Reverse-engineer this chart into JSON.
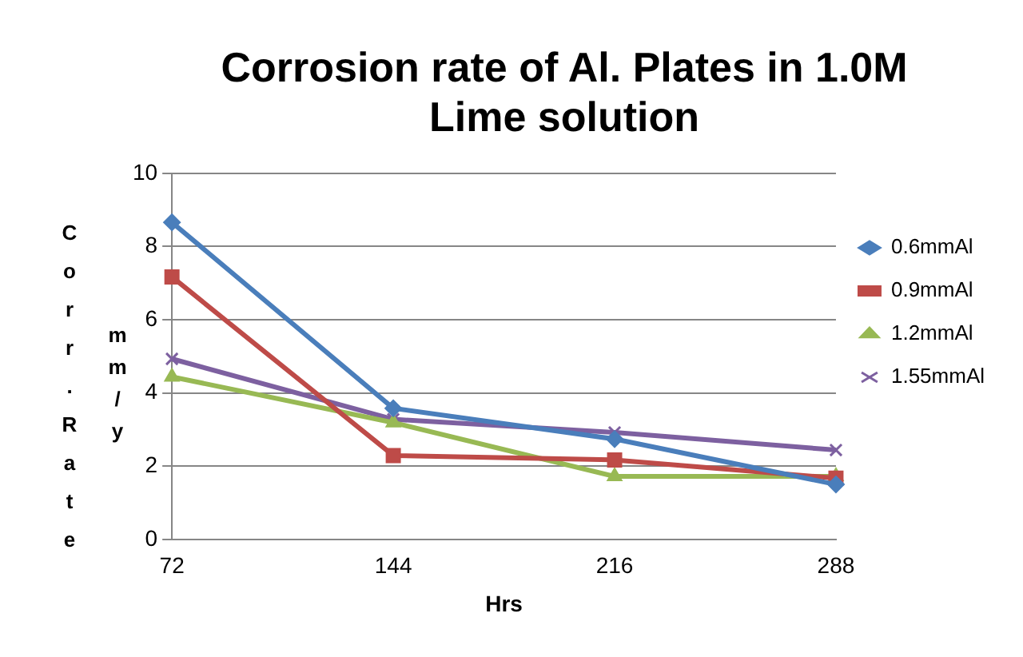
{
  "chart_data": {
    "type": "line",
    "title": "Corrosion rate of Al. Plates in 1.0M Lime solution",
    "xlabel": "Hrs",
    "ylabel": "Corr.Rate mm/y",
    "categories": [
      "72",
      "144",
      "216",
      "288"
    ],
    "series": [
      {
        "name": "0.6mmAl",
        "color": "#4a7ebb",
        "marker": "diamond",
        "values": [
          8.66,
          3.58,
          2.74,
          1.5
        ]
      },
      {
        "name": "0.9mmAl",
        "color": "#be4b48",
        "marker": "square",
        "values": [
          7.17,
          2.29,
          2.17,
          1.67
        ]
      },
      {
        "name": "1.2mmAl",
        "color": "#98b954",
        "marker": "triangle",
        "values": [
          4.44,
          3.19,
          1.72,
          1.72
        ]
      },
      {
        "name": "1.55mmAl",
        "color": "#7d60a0",
        "marker": "cross",
        "values": [
          4.93,
          3.28,
          2.92,
          2.44
        ]
      }
    ],
    "ylim": [
      0,
      10
    ],
    "yticks": [
      0,
      2,
      4,
      6,
      8,
      10
    ],
    "grid": "y",
    "legend": "right"
  }
}
